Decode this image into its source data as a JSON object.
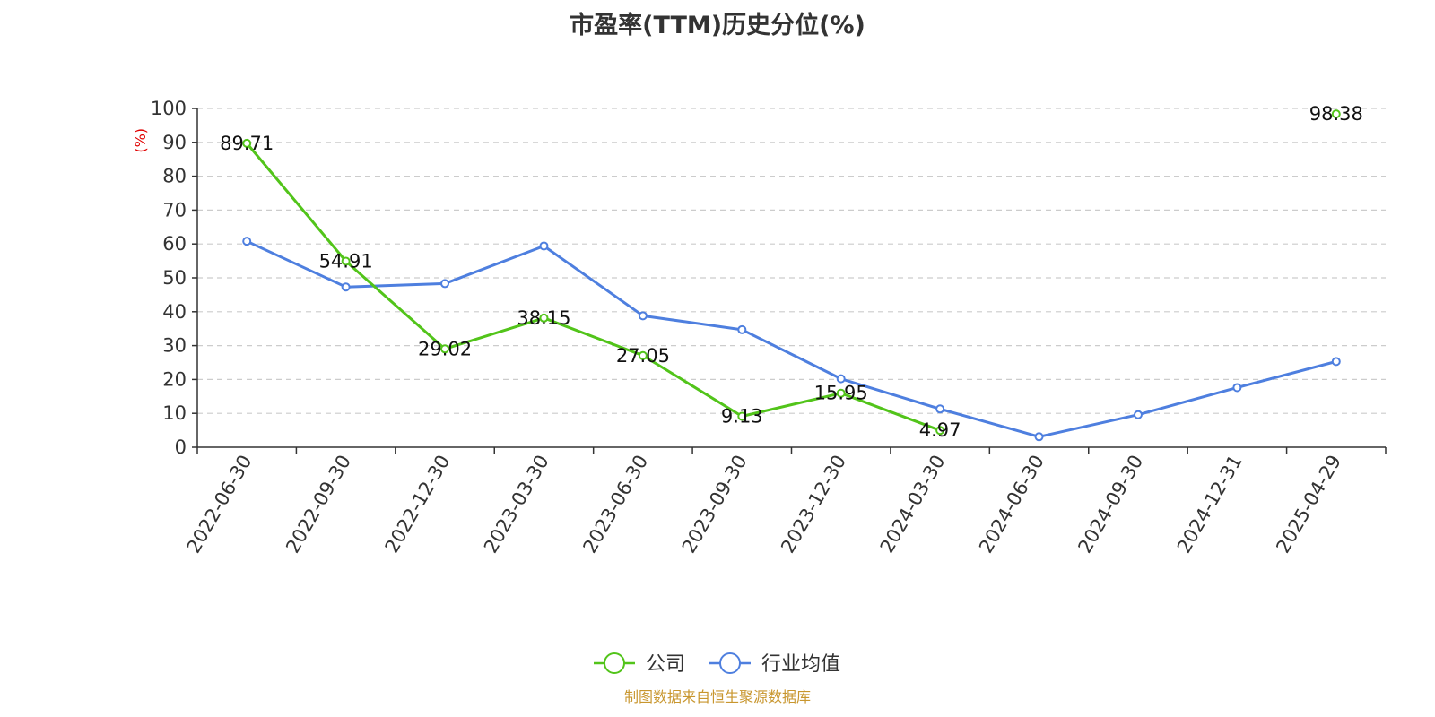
{
  "chart_data": {
    "type": "line",
    "title": "市盈率(TTM)历史分位(%)",
    "ylabel": "(%)",
    "xlabel": "",
    "ylim": [
      0,
      100
    ],
    "yticks": [
      0,
      10,
      20,
      30,
      40,
      50,
      60,
      70,
      80,
      90,
      100
    ],
    "grid": "horizontal dashed",
    "legend_position": "bottom-center",
    "categories": [
      "2022-06-30",
      "2022-09-30",
      "2022-12-30",
      "2023-03-30",
      "2023-06-30",
      "2023-09-30",
      "2023-12-30",
      "2024-03-30",
      "2024-06-30",
      "2024-09-30",
      "2024-12-31",
      "2025-04-29"
    ],
    "series": [
      {
        "name": "公司",
        "color": "#52c41a",
        "values": [
          89.71,
          54.91,
          29.02,
          38.15,
          27.05,
          9.13,
          15.95,
          4.97,
          null,
          null,
          null,
          98.38
        ],
        "show_labels": true
      },
      {
        "name": "行业均值",
        "color": "#4e7fdf",
        "values": [
          60.8,
          47.3,
          48.3,
          59.4,
          38.8,
          34.7,
          20.2,
          11.3,
          3.1,
          9.6,
          17.6,
          25.3
        ],
        "show_labels": false
      }
    ]
  },
  "source": {
    "text": "制图数据来自恒生聚源数据库",
    "color": "#c8962e"
  }
}
